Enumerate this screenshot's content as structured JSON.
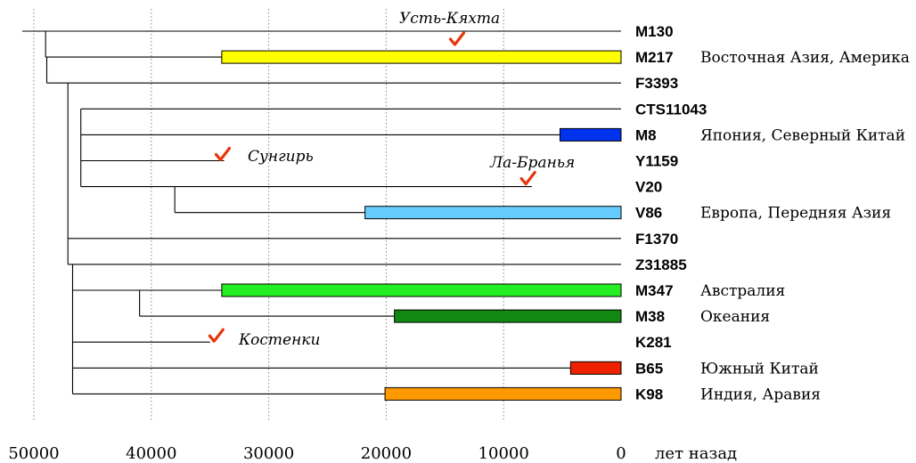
{
  "axis": {
    "ticks": [
      50000,
      40000,
      30000,
      20000,
      10000,
      0
    ],
    "tick_labels": [
      "50000",
      "40000",
      "30000",
      "20000",
      "10000",
      "0"
    ],
    "unit_label": "лет назад",
    "range": [
      50000,
      0
    ]
  },
  "branches": [
    {
      "id": "M130",
      "label": "M130",
      "region": ""
    },
    {
      "id": "M217",
      "label": "M217",
      "region": "Восточная Азия, Америка",
      "bar": {
        "from": 34000,
        "to": 0,
        "color": "#ffff00"
      }
    },
    {
      "id": "F3393",
      "label": "F3393",
      "region": ""
    },
    {
      "id": "CTS11043",
      "label": "CTS11043",
      "region": ""
    },
    {
      "id": "M8",
      "label": "M8",
      "region": "Япония, Северный Китай",
      "bar": {
        "from": 5200,
        "to": 0,
        "color": "#0033ee"
      }
    },
    {
      "id": "Y1159",
      "label": "Y1159",
      "region": ""
    },
    {
      "id": "V20",
      "label": "V20",
      "region": ""
    },
    {
      "id": "V86",
      "label": "V86",
      "region": "Европа, Передняя Азия",
      "bar": {
        "from": 21800,
        "to": 0,
        "color": "#66ccff"
      }
    },
    {
      "id": "F1370",
      "label": "F1370",
      "region": ""
    },
    {
      "id": "Z31885",
      "label": "Z31885",
      "region": ""
    },
    {
      "id": "M347",
      "label": "M347",
      "region": "Австралия",
      "bar": {
        "from": 34000,
        "to": 0,
        "color": "#22ee22"
      }
    },
    {
      "id": "M38",
      "label": "M38",
      "region": "Океания",
      "bar": {
        "from": 19300,
        "to": 0,
        "color": "#118811"
      }
    },
    {
      "id": "K281",
      "label": "K281",
      "region": ""
    },
    {
      "id": "B65",
      "label": "B65",
      "region": "Южный Китай",
      "bar": {
        "from": 4300,
        "to": 0,
        "color": "#ee2200"
      }
    },
    {
      "id": "K98",
      "label": "K98",
      "region": "Индия, Аравия",
      "bar": {
        "from": 20100,
        "to": 0,
        "color": "#ff9900"
      }
    }
  ],
  "sites": [
    {
      "name": "Усть-Кяхта",
      "age": 14000
    },
    {
      "name": "Сунгирь",
      "age": 33500
    },
    {
      "name": "Ла-Бранья",
      "age": 7500
    },
    {
      "name": "Костенки",
      "age": 34500
    }
  ],
  "colors": {
    "check": "#e8340c",
    "line": "#000000",
    "grid": "#888888"
  }
}
